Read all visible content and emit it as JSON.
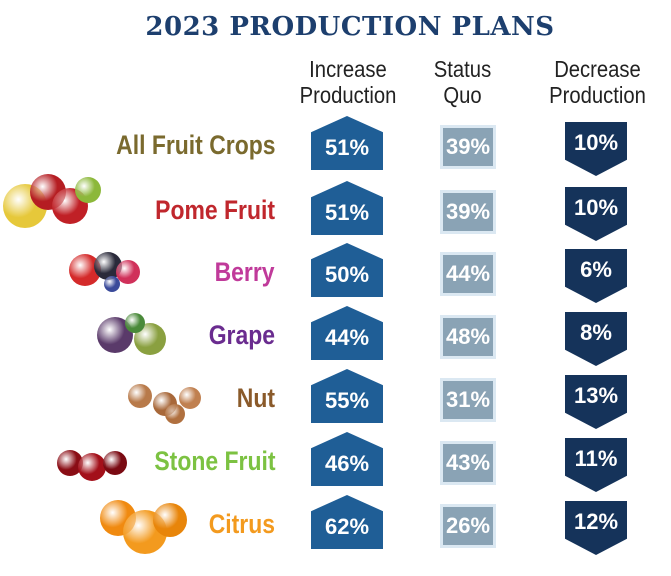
{
  "chart_data": {
    "type": "table",
    "title": "2023 PRODUCTION PLANS",
    "columns": [
      "Increase Production",
      "Status Quo",
      "Decrease Production"
    ],
    "rows": [
      {
        "label": "All Fruit Crops",
        "color": "#7a6a2e",
        "values": [
          "51%",
          "39%",
          "10%"
        ]
      },
      {
        "label": "Pome Fruit",
        "color": "#c0272d",
        "values": [
          "51%",
          "39%",
          "10%"
        ]
      },
      {
        "label": "Berry",
        "color": "#c03a9a",
        "values": [
          "50%",
          "44%",
          "6%"
        ]
      },
      {
        "label": "Grape",
        "color": "#6a2c8f",
        "values": [
          "44%",
          "48%",
          "8%"
        ]
      },
      {
        "label": "Nut",
        "color": "#8a5a2a",
        "values": [
          "55%",
          "31%",
          "13%"
        ]
      },
      {
        "label": "Stone Fruit",
        "color": "#7cc242",
        "values": [
          "46%",
          "43%",
          "11%"
        ]
      },
      {
        "label": "Citrus",
        "color": "#f39a1e",
        "values": [
          "62%",
          "26%",
          "12%"
        ]
      }
    ],
    "colors": {
      "increase": "#1f5e96",
      "status_quo": "#8aa3b5",
      "decrease": "#15335a"
    }
  }
}
